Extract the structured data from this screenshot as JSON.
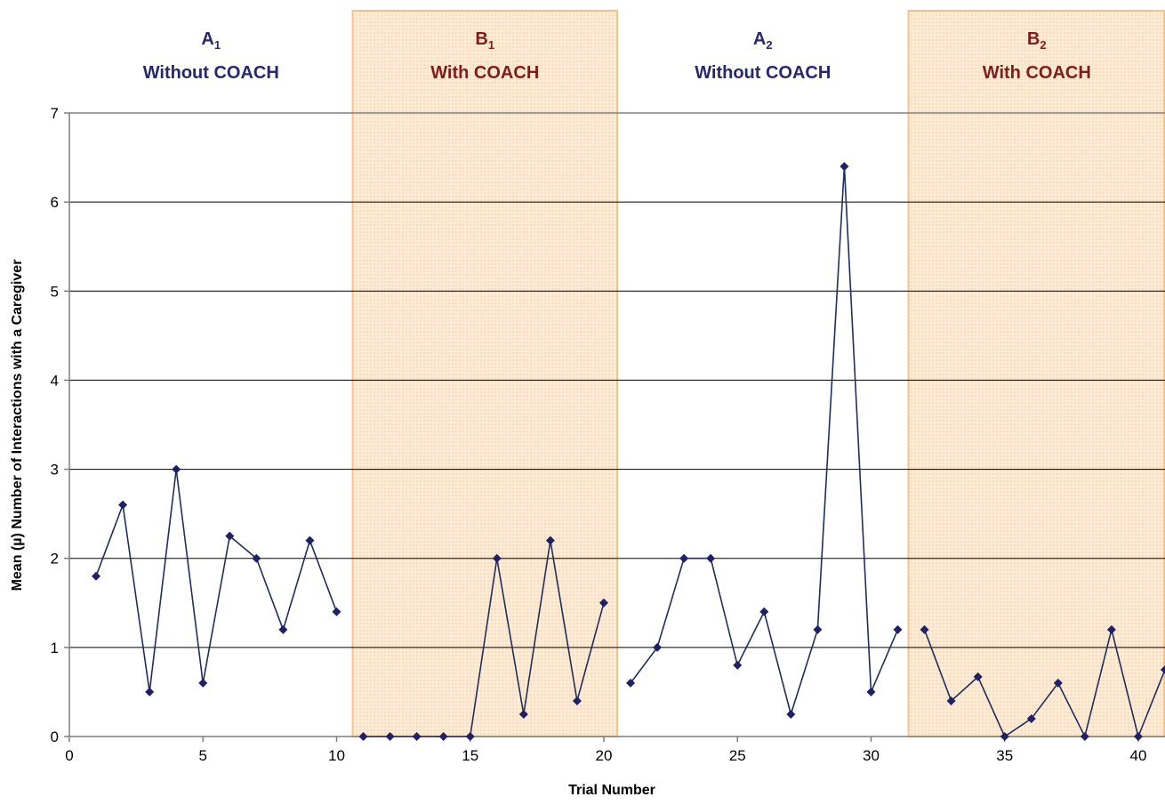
{
  "chart_data": {
    "type": "line",
    "title": "",
    "xlabel": "Trial Number",
    "ylabel": "Mean (µ) Number of Interactions with a Caregiver",
    "xlim": [
      0,
      41
    ],
    "ylim": [
      0,
      7
    ],
    "xticks": [
      0,
      5,
      10,
      15,
      20,
      25,
      30,
      35,
      40
    ],
    "yticks": [
      0,
      1,
      2,
      3,
      4,
      5,
      6,
      7
    ],
    "grid": true,
    "phases": [
      {
        "letter": "A",
        "sub": "1",
        "label": "Without COACH",
        "shaded": false,
        "color": "#26286e",
        "x_start": 0,
        "x_end": 10.6
      },
      {
        "letter": "B",
        "sub": "1",
        "label": "With COACH",
        "shaded": true,
        "color": "#7f1d1d",
        "x_start": 10.6,
        "x_end": 20.5
      },
      {
        "letter": "A",
        "sub": "2",
        "label": "Without COACH",
        "shaded": false,
        "color": "#26286e",
        "x_start": 20.5,
        "x_end": 31.4
      },
      {
        "letter": "B",
        "sub": "2",
        "label": "With COACH",
        "shaded": true,
        "color": "#7f1d1d",
        "x_start": 31.4,
        "x_end": 41
      }
    ],
    "series": [
      {
        "x": [
          1,
          2,
          3,
          4,
          5,
          6,
          7,
          8,
          9,
          10
        ],
        "y": [
          1.8,
          2.6,
          0.5,
          3.0,
          0.6,
          2.25,
          2.0,
          1.2,
          2.2,
          1.4
        ]
      },
      {
        "x": [
          11,
          12,
          13,
          14,
          15,
          16,
          17,
          18,
          19,
          20
        ],
        "y": [
          0,
          0,
          0,
          0,
          0,
          2.0,
          0.25,
          2.2,
          0.4,
          1.5
        ]
      },
      {
        "x": [
          21,
          22,
          23,
          24,
          25,
          26,
          27,
          28,
          29,
          30,
          31
        ],
        "y": [
          0.6,
          1.0,
          2.0,
          2.0,
          0.8,
          1.4,
          0.25,
          1.2,
          6.4,
          0.5,
          1.2
        ]
      },
      {
        "x": [
          32,
          33,
          34,
          35,
          36,
          37,
          38,
          39,
          40,
          41
        ],
        "y": [
          1.2,
          0.4,
          0.67,
          0,
          0.2,
          0.6,
          0,
          1.2,
          0,
          0.75
        ]
      }
    ],
    "colors": {
      "line": "#1f2f5a",
      "marker": "#1f2068",
      "shade_fill": "#fde9d2",
      "shade_border": "#f4c48e",
      "grid": "#000000",
      "axis": "#7f7f7f"
    }
  }
}
